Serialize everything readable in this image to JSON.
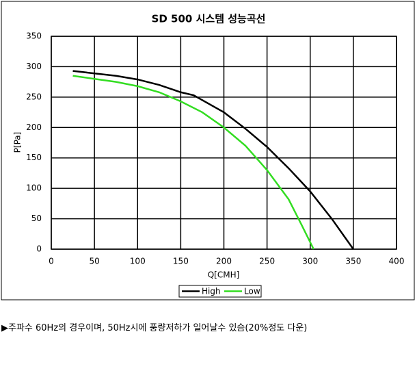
{
  "chart_data": {
    "type": "line",
    "title": "SD 500 시스템 성능곡선",
    "x_label": "Q[CMH]",
    "y_label": "P[Pa]",
    "xlim": [
      0,
      400
    ],
    "xticks": [
      0,
      50,
      100,
      150,
      200,
      250,
      300,
      350,
      400
    ],
    "ylim": [
      0,
      350
    ],
    "yticks": [
      0,
      50,
      100,
      150,
      200,
      250,
      300,
      350
    ],
    "grid": true,
    "legend": "bottom",
    "series": [
      {
        "name": "High",
        "color": "#000000",
        "x": [
          25,
          50,
          75,
          100,
          125,
          150,
          165,
          200,
          225,
          250,
          275,
          300,
          325,
          350
        ],
        "values": [
          293,
          289,
          285,
          279,
          270,
          258,
          253,
          225,
          198,
          168,
          133,
          95,
          50,
          0
        ]
      },
      {
        "name": "Low",
        "color": "#33dd22",
        "x": [
          25,
          50,
          75,
          100,
          125,
          150,
          175,
          200,
          225,
          250,
          275,
          290,
          304
        ],
        "values": [
          285,
          280,
          275,
          268,
          258,
          243,
          225,
          200,
          170,
          130,
          82,
          40,
          0
        ]
      }
    ]
  },
  "note": "▶주파수 60Hz의 경우이며, 50Hz시에 풍량저하가 일어날수 있슴(20%정도 다운)"
}
